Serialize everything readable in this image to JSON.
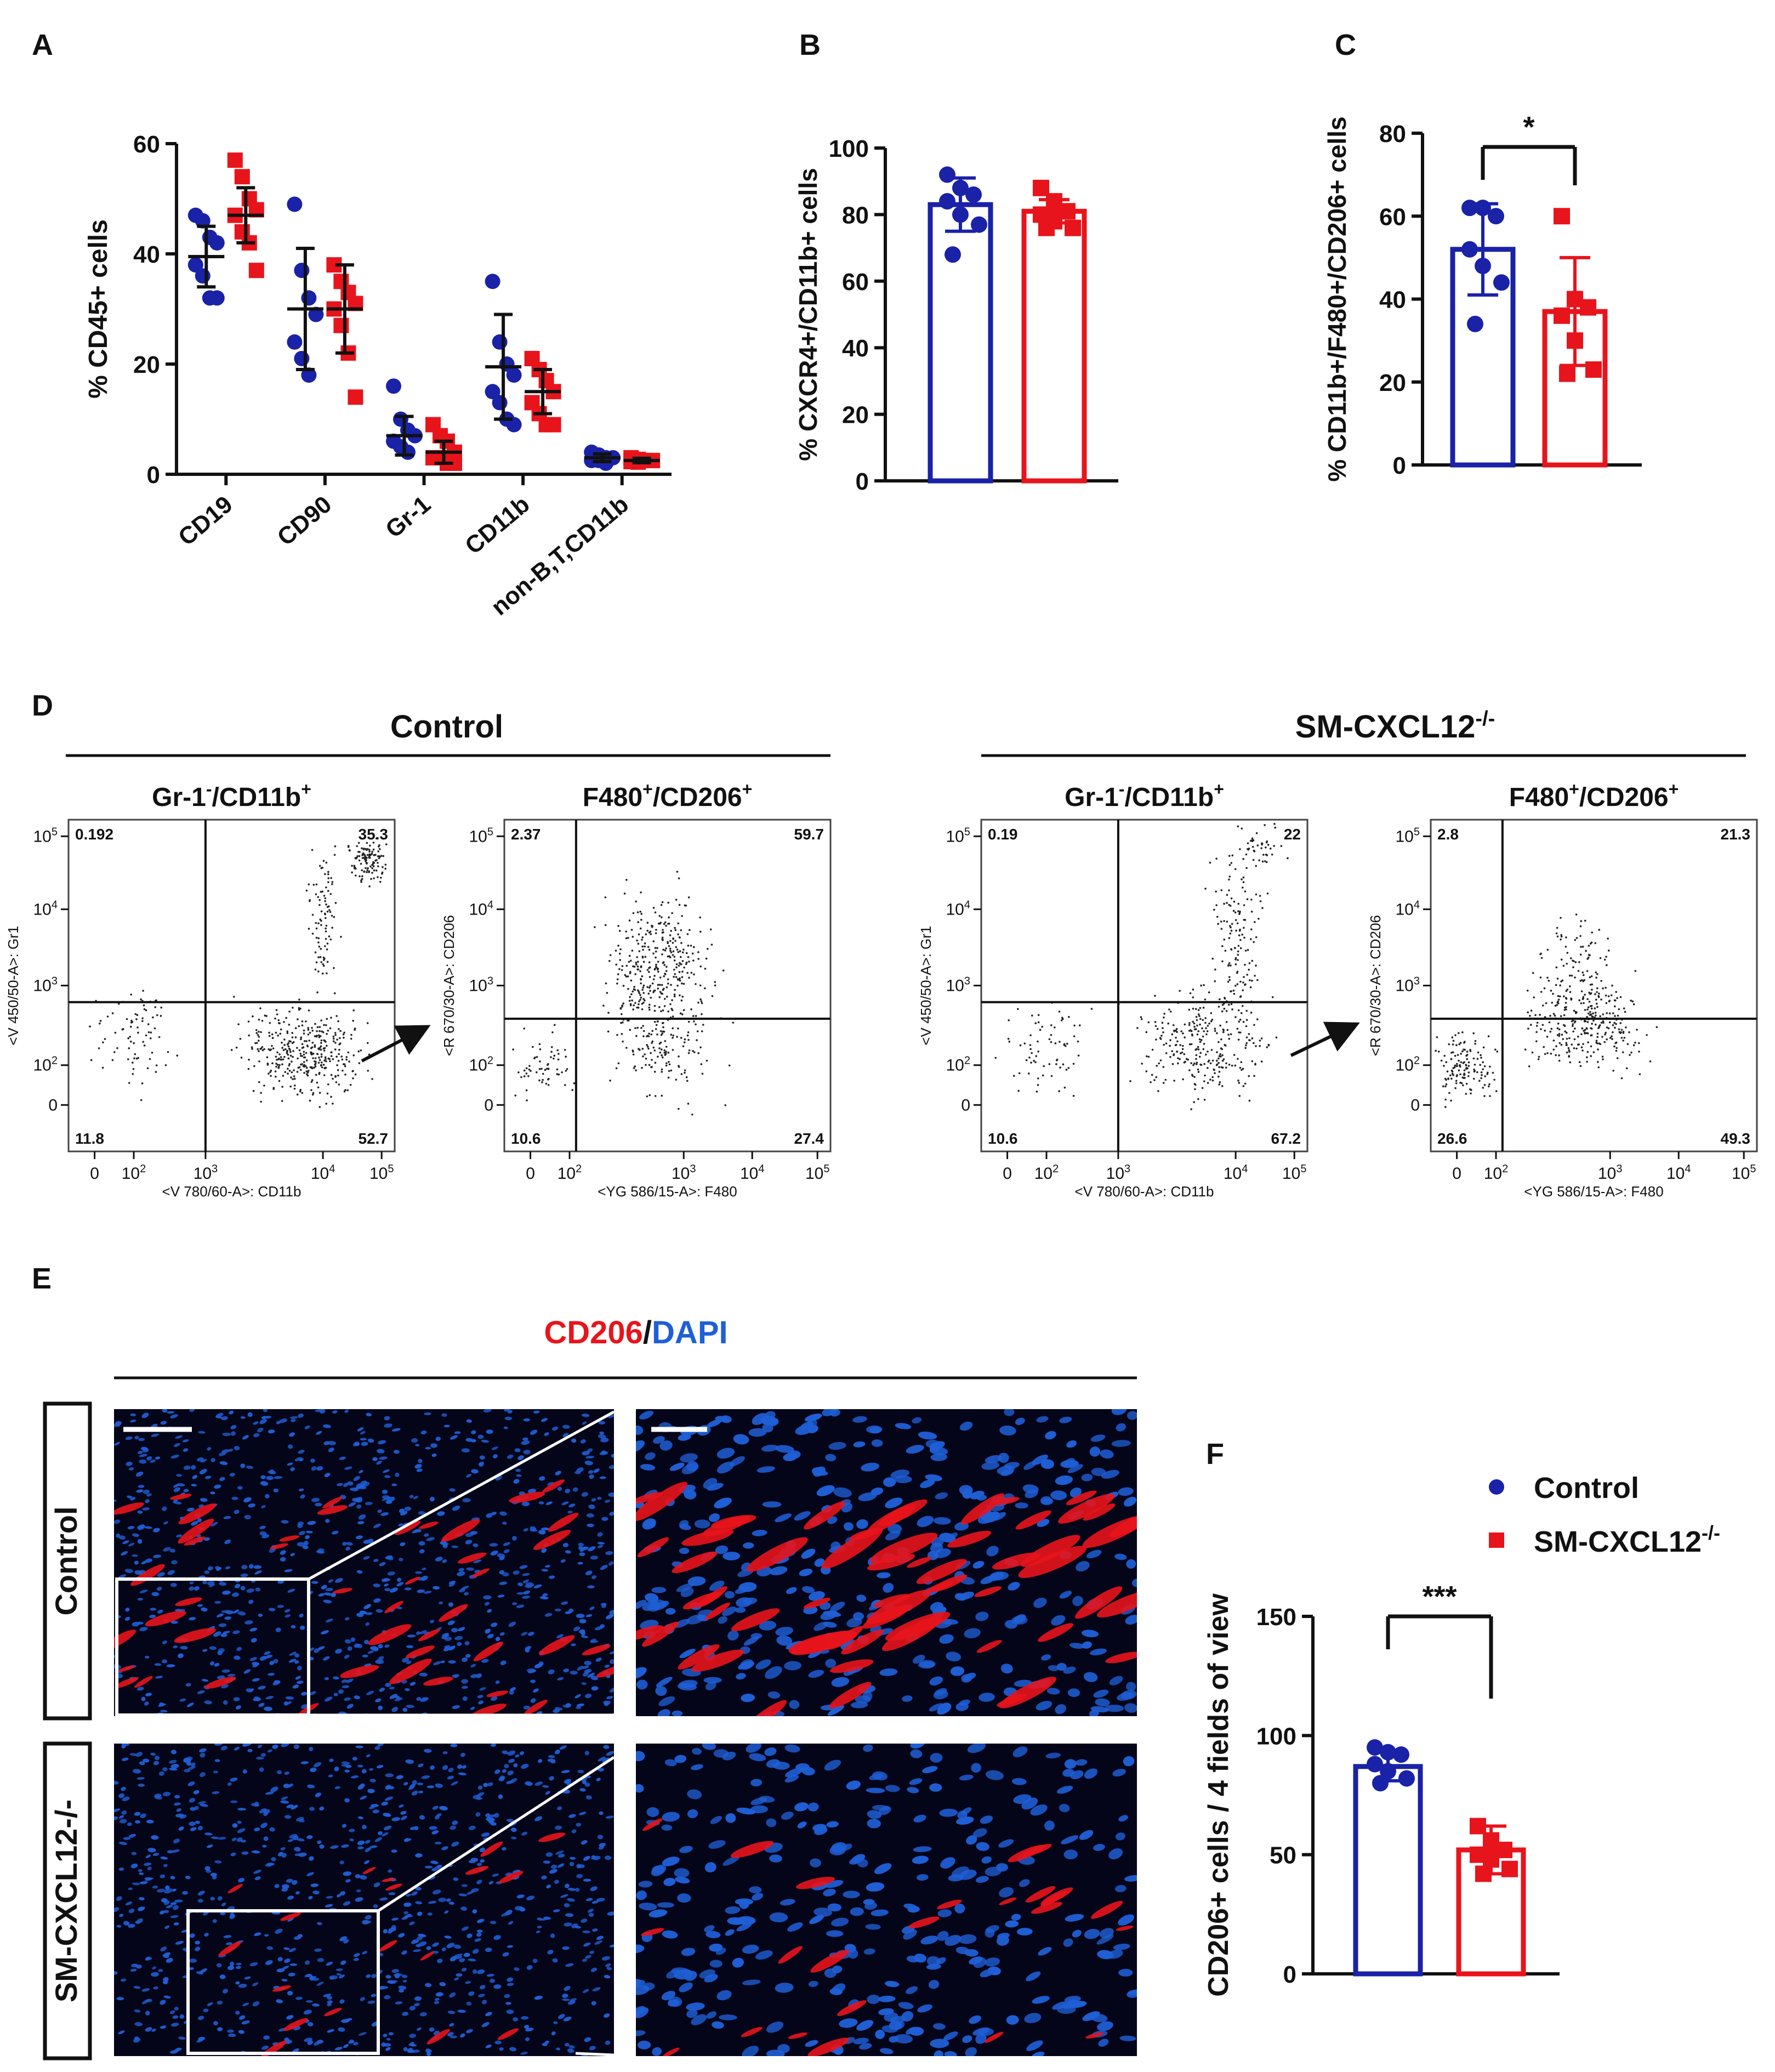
{
  "panels": {
    "A": {
      "letter": "A"
    },
    "B": {
      "letter": "B"
    },
    "C": {
      "letter": "C"
    },
    "D": {
      "letter": "D"
    },
    "E": {
      "letter": "E"
    },
    "F": {
      "letter": "F"
    }
  },
  "colors": {
    "control": "#1a22a8",
    "knockout": "#e8141c",
    "axis": "#111111",
    "cd206": "#e8141c",
    "dapi": "#1f5fd6"
  },
  "legend": {
    "control": "Control",
    "ko_main": "SM-CXCL12",
    "ko_sup": "-/-"
  },
  "chart_data": [
    {
      "id": "A",
      "type": "scatter",
      "ylabel": "%  CD45+ cells",
      "yticks": [
        "0",
        "20",
        "40",
        "60"
      ],
      "ylim": [
        0,
        60
      ],
      "categories": [
        "CD19",
        "CD90",
        "Gr-1",
        "CD11b",
        "non-B,T,CD11b"
      ],
      "series": [
        {
          "group": "control",
          "means": [
            39.5,
            30,
            7,
            19.5,
            3
          ],
          "sd": [
            5.5,
            11,
            3.5,
            9.5,
            0.7
          ],
          "points": [
            [
              47,
              46,
              43,
              42,
              38,
              36,
              32,
              32
            ],
            [
              49,
              37,
              32,
              29,
              24,
              21,
              18
            ],
            [
              16,
              10,
              8,
              7,
              6,
              5,
              4
            ],
            [
              35,
              24,
              20,
              18,
              15,
              13,
              10,
              9
            ],
            [
              4,
              3.5,
              3,
              3,
              2.5,
              2.5,
              2
            ]
          ]
        },
        {
          "group": "knockout",
          "means": [
            47,
            30,
            4,
            15,
            2.5
          ],
          "sd": [
            5,
            8,
            2,
            4,
            0.4
          ],
          "points": [
            [
              57,
              54,
              50,
              48,
              47,
              44,
              42,
              37
            ],
            [
              38,
              35,
              33,
              31,
              30,
              27,
              22,
              14
            ],
            [
              9,
              7,
              6,
              4,
              3,
              3,
              2,
              2
            ],
            [
              21,
              19,
              17,
              15,
              13,
              11,
              9,
              9
            ],
            [
              3,
              2.7,
              2.5,
              2.5,
              2.3,
              2.2
            ]
          ]
        }
      ]
    },
    {
      "id": "B",
      "type": "bar",
      "ylabel": "% CXCR4+/CD11b+ cells",
      "yticks": [
        "0",
        "20",
        "40",
        "60",
        "80",
        "100"
      ],
      "ylim": [
        0,
        100
      ],
      "series": [
        {
          "group": "control",
          "mean": 83,
          "sd": 8,
          "points": [
            92,
            88,
            86,
            84,
            80,
            77,
            68
          ]
        },
        {
          "group": "knockout",
          "mean": 81,
          "sd": 3.5,
          "points": [
            88,
            84,
            81,
            80,
            78,
            76,
            76
          ]
        }
      ]
    },
    {
      "id": "C",
      "type": "bar",
      "ylabel": "% CD11b+/F480+/CD206+ cells",
      "yticks": [
        "0",
        "20",
        "40",
        "60",
        "80"
      ],
      "ylim": [
        0,
        80
      ],
      "significance": "*",
      "series": [
        {
          "group": "control",
          "mean": 52,
          "sd": 11,
          "points": [
            62,
            62,
            60,
            52,
            48,
            44,
            34
          ]
        },
        {
          "group": "knockout",
          "mean": 37,
          "sd": 13,
          "points": [
            60,
            40,
            38,
            36,
            30,
            23,
            22
          ]
        }
      ]
    },
    {
      "id": "F",
      "type": "bar",
      "ylabel": "CD206+ cells / 4 fields of view",
      "yticks": [
        "0",
        "50",
        "100",
        "150"
      ],
      "ylim": [
        0,
        150
      ],
      "significance": "***",
      "series": [
        {
          "group": "control",
          "mean": 87,
          "sd": 6,
          "points": [
            95,
            93,
            92,
            88,
            85,
            82,
            80
          ]
        },
        {
          "group": "knockout",
          "mean": 52,
          "sd": 10,
          "points": [
            62,
            56,
            52,
            50,
            48,
            44,
            42
          ]
        }
      ]
    }
  ],
  "flow": {
    "control_title": "Control",
    "ko_title_main": "SM-CXCL12",
    "ko_title_sup": "-/-",
    "gate1": {
      "pre": "Gr-1",
      "sup1": "-",
      "mid": "/CD11b",
      "sup2": "+"
    },
    "gate2": {
      "pre": "F480",
      "sup1": "+",
      "mid": "/CD206",
      "sup2": "+"
    },
    "ylabel_gr1": "<V 450/50-A>: Gr1",
    "ylabel_cd206": "<R 670/30-A>: CD206",
    "xlabel_cd11b": "<V 780/60-A>: CD11b",
    "xlabel_f480": "<YG 586/15-A>: F480",
    "plots": [
      {
        "quadrants": [
          "0.192",
          "35.3",
          "11.8",
          "52.7"
        ]
      },
      {
        "quadrants": [
          "2.37",
          "59.7",
          "10.6",
          "27.4"
        ]
      },
      {
        "quadrants": [
          "0.19",
          "22",
          "10.6",
          "67.2"
        ]
      },
      {
        "quadrants": [
          "2.8",
          "21.3",
          "26.6",
          "49.3"
        ]
      }
    ]
  },
  "histology": {
    "stain_cd206": "CD206",
    "stain_sep": "/",
    "stain_dapi": "DAPI",
    "row_control": "Control",
    "row_ko": "SM-CXCL12",
    "row_ko_sup": "-/-"
  }
}
